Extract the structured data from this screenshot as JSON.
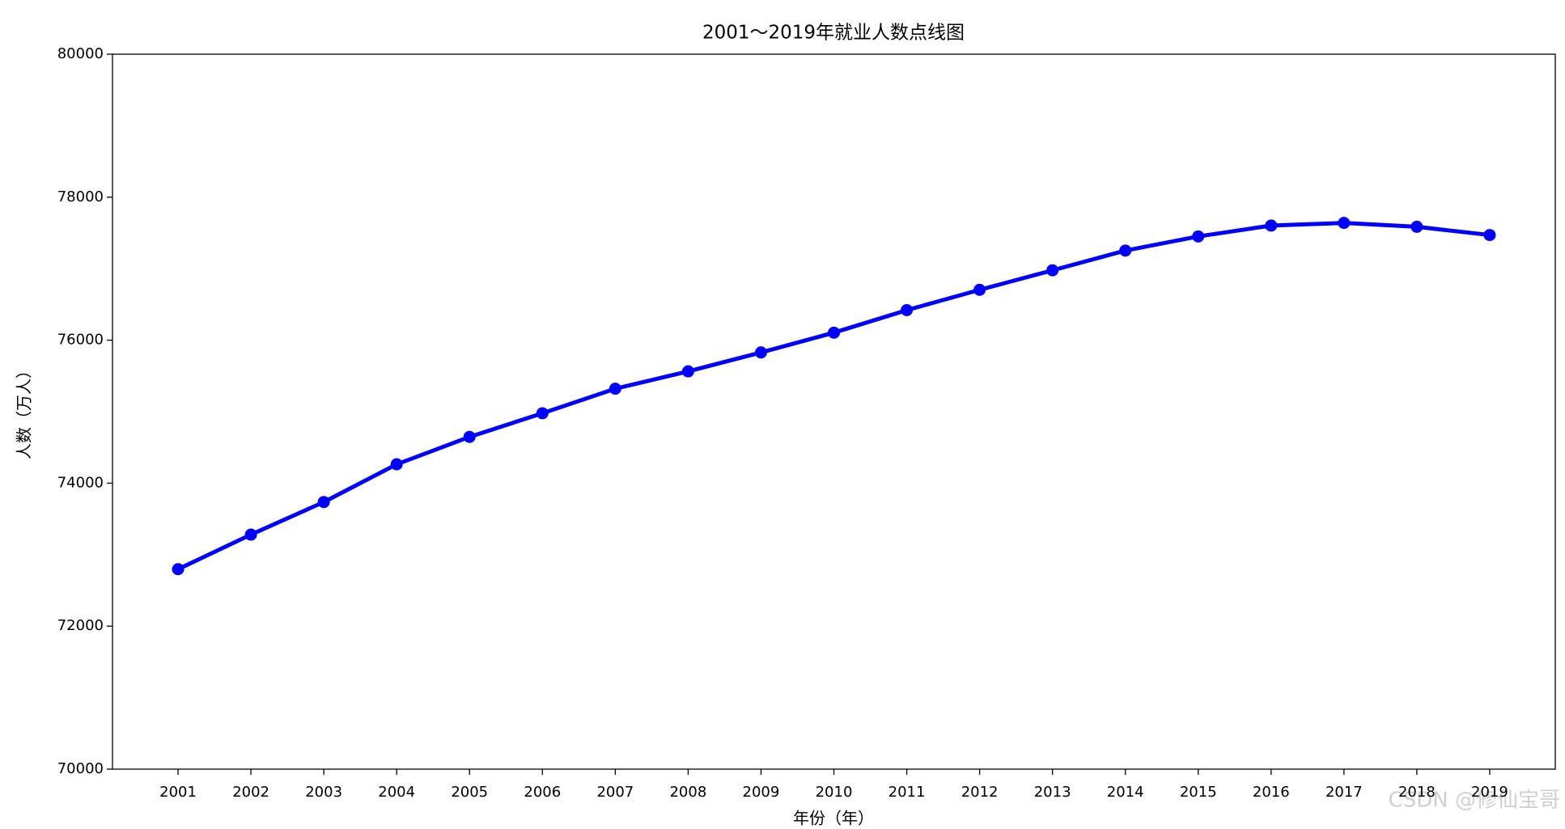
{
  "chart_data": {
    "type": "line",
    "title": "2001～2019年就业人数点线图",
    "xlabel": "年份（年）",
    "ylabel": "人数（万人）",
    "categories": [
      "2001",
      "2002",
      "2003",
      "2004",
      "2005",
      "2006",
      "2007",
      "2008",
      "2009",
      "2010",
      "2011",
      "2012",
      "2013",
      "2014",
      "2015",
      "2016",
      "2017",
      "2018",
      "2019"
    ],
    "values": [
      72797,
      73280,
      73736,
      74264,
      74647,
      74978,
      75321,
      75564,
      75828,
      76105,
      76420,
      76704,
      76977,
      77253,
      77451,
      77603,
      77640,
      77586,
      77471
    ],
    "color": "#0000ff",
    "ylim": [
      70000,
      80000
    ],
    "yticks": [
      70000,
      72000,
      74000,
      76000,
      78000,
      80000
    ],
    "grid": false
  },
  "watermark": "CSDN @修仙宝哥"
}
